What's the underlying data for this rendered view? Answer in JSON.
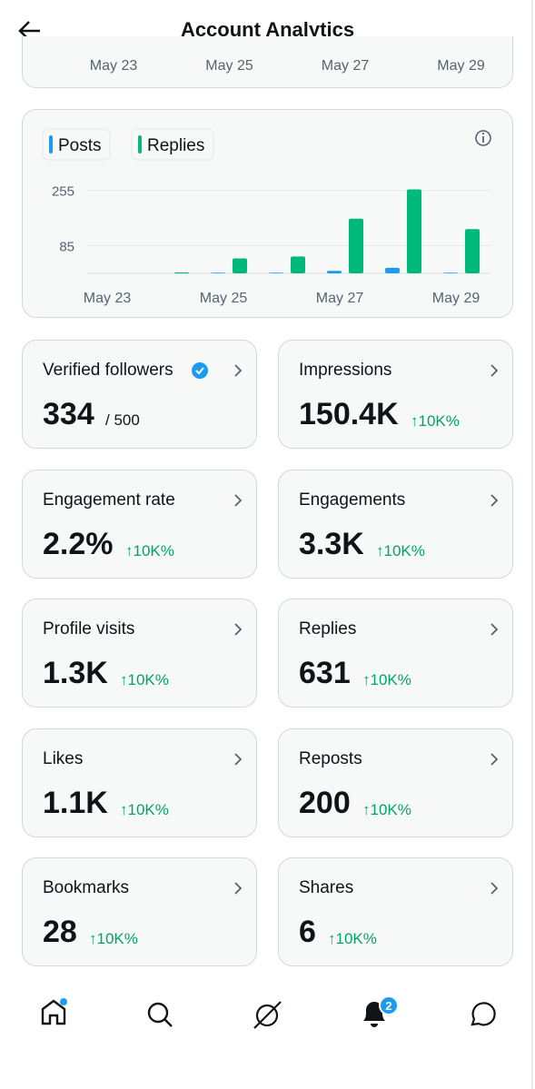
{
  "header": {
    "title": "Account Analytics"
  },
  "top_axis": [
    "May 23",
    "May 25",
    "May 27",
    "May 29"
  ],
  "chart_data": {
    "type": "bar",
    "categories": [
      "May 23",
      null,
      "May 25",
      null,
      "May 27",
      null,
      "May 29"
    ],
    "series": [
      {
        "name": "Posts",
        "color": "#1d9bf0",
        "values": [
          0,
          0,
          2,
          2,
          8,
          17,
          2
        ]
      },
      {
        "name": "Replies",
        "color": "#00ba7c",
        "values": [
          0,
          3,
          46,
          52,
          168,
          258,
          136
        ]
      }
    ],
    "ylim": [
      0,
      265
    ],
    "yticks": [
      85,
      255
    ],
    "grid": true
  },
  "metrics": [
    {
      "label": "Verified followers",
      "value": "334",
      "suffix": "/ 500"
    },
    {
      "label": "Impressions",
      "value": "150.4K",
      "change": "↑10K%"
    },
    {
      "label": "Engagement rate",
      "value": "2.2%",
      "change": "↑10K%"
    },
    {
      "label": "Engagements",
      "value": "3.3K",
      "change": "↑10K%"
    },
    {
      "label": "Profile visits",
      "value": "1.3K",
      "change": "↑10K%"
    },
    {
      "label": "Replies",
      "value": "631",
      "change": "↑10K%"
    },
    {
      "label": "Likes",
      "value": "1.1K",
      "change": "↑10K%"
    },
    {
      "label": "Reposts",
      "value": "200",
      "change": "↑10K%"
    },
    {
      "label": "Bookmarks",
      "value": "28",
      "change": "↑10K%"
    },
    {
      "label": "Shares",
      "value": "6",
      "change": "↑10K%"
    }
  ],
  "nav": {
    "badge": "2"
  }
}
